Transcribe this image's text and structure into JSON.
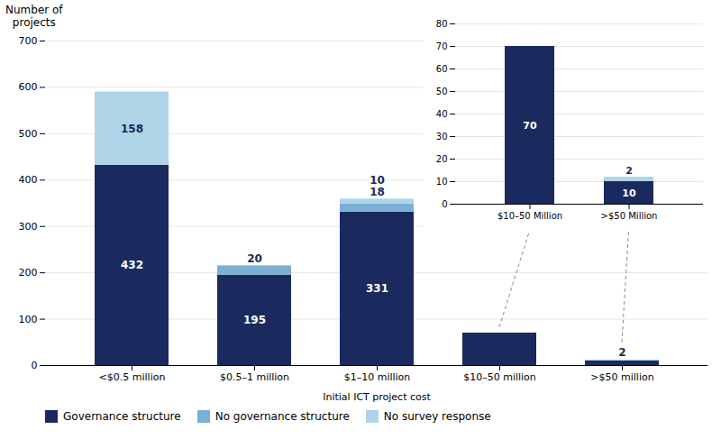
{
  "chart_data": [
    {
      "type": "bar",
      "stacked": true,
      "data_labels": true,
      "grid": true,
      "legend": "bottom",
      "xlabel": "Initial ICT project cost",
      "ylabel": "Number of\nprojects",
      "categories": [
        "<$0.5 million",
        "$0.5–1 million",
        "$1–10 million",
        "$10–50 million",
        ">$50 million"
      ],
      "series": [
        {
          "name": "Governance structure",
          "color": "#1a2a5e",
          "values": [
            432,
            195,
            331,
            70,
            10
          ],
          "value_labels": [
            "432",
            "195",
            "331",
            null,
            null
          ]
        },
        {
          "name": "No governance structure",
          "color": "#7bafd4",
          "values": [
            0,
            20,
            18,
            0,
            0
          ],
          "value_labels": [
            null,
            "20",
            "18",
            null,
            null
          ]
        },
        {
          "name": "No survey response",
          "color": "#aed4e8",
          "values": [
            158,
            0,
            10,
            0,
            2
          ],
          "value_labels": [
            "158",
            null,
            "10",
            null,
            "2"
          ]
        }
      ],
      "ylim": [
        0,
        700
      ],
      "yticks": [
        0,
        100,
        200,
        300,
        400,
        500,
        600,
        700
      ]
    },
    {
      "type": "bar",
      "stacked": true,
      "data_labels": true,
      "grid": true,
      "categories": [
        "$10–50 Million",
        ">$50 Million"
      ],
      "series": [
        {
          "name": "Governance structure",
          "color": "#1a2a5e",
          "values": [
            70,
            10
          ],
          "value_labels": [
            "70",
            "10"
          ]
        },
        {
          "name": "No governance structure",
          "color": "#7bafd4",
          "values": [
            0,
            0
          ],
          "value_labels": [
            null,
            null
          ]
        },
        {
          "name": "No survey response",
          "color": "#aed4e8",
          "values": [
            0,
            2
          ],
          "value_labels": [
            null,
            "2"
          ]
        }
      ],
      "ylim": [
        0,
        80
      ],
      "yticks": [
        0,
        10,
        20,
        30,
        40,
        50,
        60,
        70,
        80
      ]
    }
  ]
}
